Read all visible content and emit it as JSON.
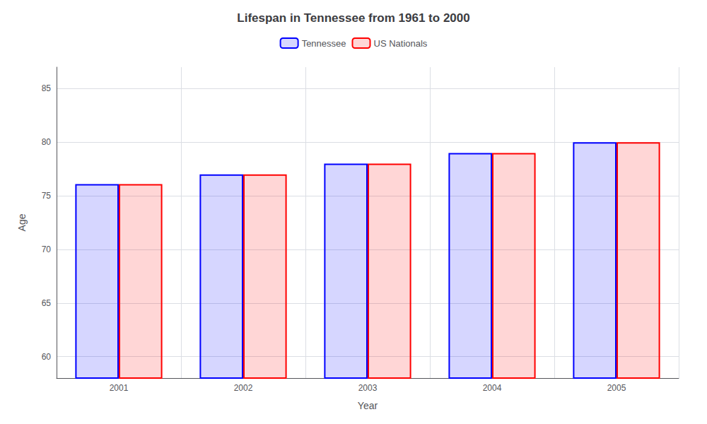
{
  "chart_data": {
    "type": "bar",
    "title": "Lifespan in Tennessee from 1961 to 2000",
    "xlabel": "Year",
    "ylabel": "Age",
    "categories": [
      "2001",
      "2002",
      "2003",
      "2004",
      "2005"
    ],
    "series": [
      {
        "name": "Tennessee",
        "color": "#0000ff",
        "values": [
          76.1,
          77.0,
          78.0,
          79.0,
          80.0
        ]
      },
      {
        "name": "US Nationals",
        "color": "#ff0000",
        "values": [
          76.1,
          77.0,
          78.0,
          79.0,
          80.0
        ]
      }
    ],
    "ylim": [
      58,
      87
    ],
    "yticks": [
      60,
      65,
      70,
      75,
      80,
      85
    ],
    "grid": true,
    "legend": "top"
  }
}
